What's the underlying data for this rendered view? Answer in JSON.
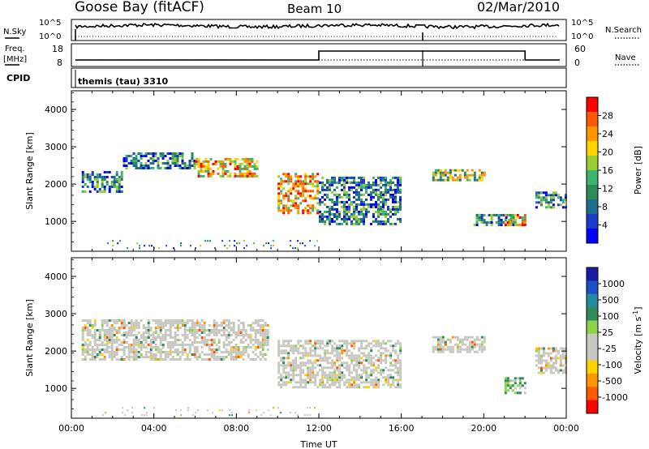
{
  "header": {
    "site": "Goose Bay (fitACF)",
    "beam": "Beam 10",
    "date": "02/Mar/2010"
  },
  "nsky_panel": {
    "left_label": "N.Sky",
    "right_label": "N.Search",
    "left_ticks": [
      "10^5",
      "10^0"
    ],
    "right_ticks": [
      "10^5",
      "10^0"
    ]
  },
  "freq_panel": {
    "left_label_1": "Freq.",
    "left_label_2": "[MHz]",
    "right_label": "Nave",
    "left_ticks": [
      "18",
      "8"
    ],
    "right_ticks": [
      "60",
      "0"
    ],
    "freq_high_interval_hours": [
      12.0,
      22.0
    ]
  },
  "cpid_panel": {
    "label": "CPID",
    "value": "themis (tau) 3310"
  },
  "power_colorbar": {
    "label": "Power [dB]",
    "ticks": [
      "28",
      "24",
      "20",
      "16",
      "12",
      "8",
      "4"
    ],
    "colors": [
      "#ff0000",
      "#ff5a00",
      "#ff9600",
      "#ffd200",
      "#9acd32",
      "#3cb371",
      "#2e8b57",
      "#1e6e8c",
      "#1a3cc8",
      "#0000ff"
    ]
  },
  "velocity_colorbar": {
    "label_main": "Velocity  [m s",
    "label_exp": "-1",
    "label_close": "]",
    "ticks": [
      "1000",
      "500",
      "100",
      "25",
      "-25",
      "-100",
      "-500",
      "-1000"
    ],
    "colors": [
      "#1a1aa8",
      "#1c50c8",
      "#238ba0",
      "#2e8b57",
      "#8cd24b",
      "#c8c8c0",
      "#c8c8c0",
      "#ffd200",
      "#ff9600",
      "#ff5a00",
      "#ff0000"
    ]
  },
  "chart_data": [
    {
      "type": "heatmap",
      "title": "Power",
      "ylabel": "Slant Range [km]",
      "y_ticks": [
        "1000",
        "2000",
        "3000",
        "4000"
      ],
      "y_tick_values": [
        1000,
        2000,
        3000,
        4000
      ],
      "ylim": [
        200,
        4500
      ],
      "xlim": [
        0,
        24
      ],
      "regions": [
        {
          "t0": 0.5,
          "t1": 2.5,
          "r0": 1800,
          "r1": 2350,
          "level": "low"
        },
        {
          "t0": 2.5,
          "t1": 6.0,
          "r0": 2400,
          "r1": 2850,
          "level": "low"
        },
        {
          "t0": 6.0,
          "t1": 9.0,
          "r0": 2200,
          "r1": 2700,
          "level": "high"
        },
        {
          "t0": 10.0,
          "t1": 12.0,
          "r0": 1200,
          "r1": 2300,
          "level": "high"
        },
        {
          "t0": 12.0,
          "t1": 16.0,
          "r0": 900,
          "r1": 2200,
          "level": "low"
        },
        {
          "t0": 17.5,
          "t1": 20.0,
          "r0": 2100,
          "r1": 2400,
          "level": "mid"
        },
        {
          "t0": 19.5,
          "t1": 21.5,
          "r0": 900,
          "r1": 1200,
          "level": "low"
        },
        {
          "t0": 21.0,
          "t1": 22.0,
          "r0": 900,
          "r1": 1200,
          "level": "high"
        },
        {
          "t0": 22.5,
          "t1": 24.0,
          "r0": 1400,
          "r1": 1800,
          "level": "low"
        }
      ]
    },
    {
      "type": "heatmap",
      "title": "Velocity",
      "ylabel": "Slant Range [km]",
      "y_ticks": [
        "1000",
        "2000",
        "3000",
        "4000"
      ],
      "y_tick_values": [
        1000,
        2000,
        3000,
        4000
      ],
      "ylim": [
        200,
        4500
      ],
      "xlim": [
        0,
        24
      ],
      "x_ticks": [
        "00:00",
        "04:00",
        "08:00",
        "12:00",
        "16:00",
        "20:00",
        "00:00"
      ],
      "x_tick_values": [
        0,
        4,
        8,
        12,
        16,
        20,
        24
      ],
      "xlabel": "Time UT",
      "regions": [
        {
          "t0": 0.5,
          "t1": 9.5,
          "r0": 1800,
          "r1": 2850,
          "level": "ground"
        },
        {
          "t0": 10.0,
          "t1": 16.0,
          "r0": 1000,
          "r1": 2300,
          "level": "ground"
        },
        {
          "t0": 17.5,
          "t1": 20.0,
          "r0": 2000,
          "r1": 2400,
          "level": "ground"
        },
        {
          "t0": 21.0,
          "t1": 22.0,
          "r0": 850,
          "r1": 1300,
          "level": "positive"
        },
        {
          "t0": 22.5,
          "t1": 24.0,
          "r0": 1400,
          "r1": 2100,
          "level": "ground"
        }
      ]
    }
  ]
}
